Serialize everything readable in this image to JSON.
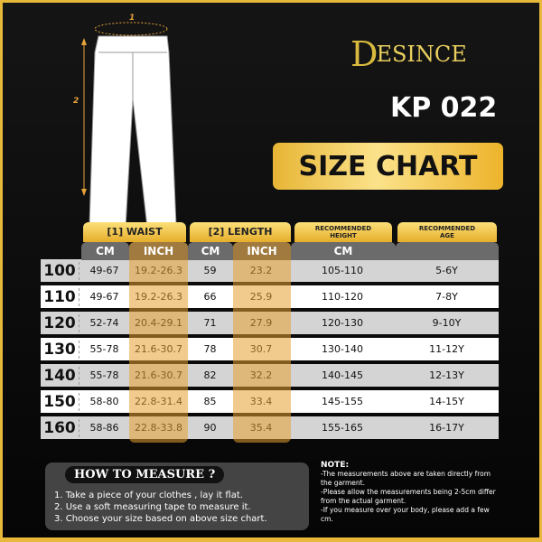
{
  "brand": {
    "logo": "DESINCE",
    "logo_initial": "D",
    "logo_rest": "ESINCE"
  },
  "model": "KP 022",
  "title": "SIZE CHART",
  "diagram": {
    "label_waist": "1",
    "label_length": "2"
  },
  "table": {
    "headers": {
      "waist": "[1] WAIST",
      "length": "[2] LENGTH",
      "height": "RECOMMENDED HEIGHT",
      "age": "RECOMMENDED AGE"
    },
    "subheaders": {
      "waist_cm": "CM",
      "waist_inch": "INCH",
      "length_cm": "CM",
      "length_inch": "INCH",
      "height_cm": "CM"
    },
    "rows": [
      [
        "100",
        "49-67",
        "19.2-26.3",
        "59",
        "23.2",
        "105-110",
        "5-6Y"
      ],
      [
        "110",
        "49-67",
        "19.2-26.3",
        "66",
        "25.9",
        "110-120",
        "7-8Y"
      ],
      [
        "120",
        "52-74",
        "20.4-29.1",
        "71",
        "27.9",
        "120-130",
        "9-10Y"
      ],
      [
        "130",
        "55-78",
        "21.6-30.7",
        "78",
        "30.7",
        "130-140",
        "11-12Y"
      ],
      [
        "140",
        "55-78",
        "21.6-30.7",
        "82",
        "32.2",
        "140-145",
        "12-13Y"
      ],
      [
        "150",
        "58-80",
        "22.8-31.4",
        "85",
        "33.4",
        "145-155",
        "14-15Y"
      ],
      [
        "160",
        "58-86",
        "22.8-33.8",
        "90",
        "35.4",
        "155-165",
        "16-17Y"
      ]
    ]
  },
  "how_to_measure": {
    "title": "HOW TO MEASURE ?",
    "steps": [
      "1. Take a piece of your clothes , lay it flat.",
      "2. Use a soft measuring tape to measure it.",
      "3. Choose your size based on above size chart."
    ]
  },
  "note": {
    "title": "NOTE:",
    "lines": [
      "-The measurements above are taken directly from the garment.",
      "-Please allow the measurements being 2-5cm differ from the actual garment.",
      "-If you measure over your body, please add a few cm."
    ]
  },
  "colors": {
    "gold": "#e8b83a",
    "background": "#0a0a0a",
    "subheader_gray": "#6b6b6b"
  }
}
